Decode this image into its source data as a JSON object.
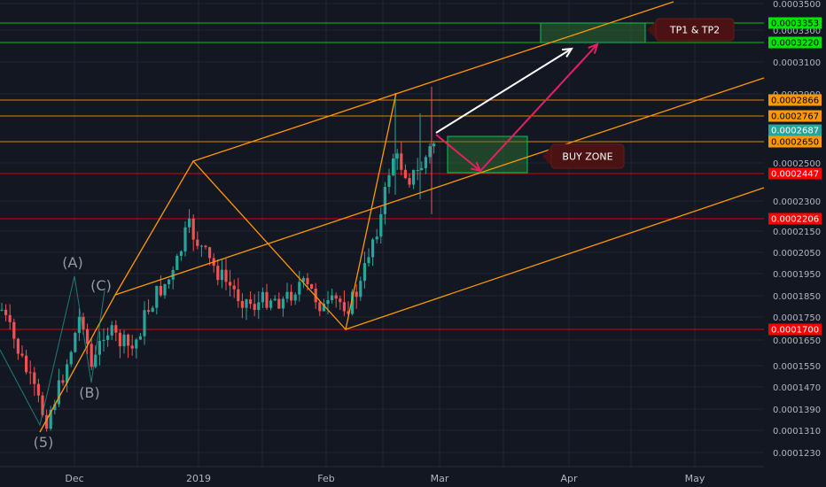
{
  "chart_data": {
    "type": "candlestick",
    "y_axis_ticks": [
      "0.0003500",
      "0.0003300",
      "0.0003100",
      "0.0002900",
      "0.0002500",
      "0.0002300",
      "0.0002150",
      "0.0002050",
      "0.0001950",
      "0.0001850",
      "0.0001750",
      "0.0001650",
      "0.0001550",
      "0.0001470",
      "0.0001390",
      "0.0001310",
      "0.0001230"
    ],
    "x_axis_ticks": [
      "Dec",
      "2019",
      "Feb",
      "Mar",
      "Apr",
      "May"
    ],
    "price_level_badges": [
      {
        "label": "0.0003353",
        "color": "#00e600",
        "text_color": "#000000"
      },
      {
        "label": "0.0003220",
        "color": "#00e600",
        "text_color": "#000000"
      },
      {
        "label": "0.0002866",
        "color": "#ff9800",
        "text_color": "#000000"
      },
      {
        "label": "0.0002767",
        "color": "#ff9800",
        "text_color": "#000000"
      },
      {
        "label": "0.0002687",
        "color": "#26a69a",
        "text_color": "#ffffff"
      },
      {
        "label": "0.0002650",
        "color": "#ff9800",
        "text_color": "#000000"
      },
      {
        "label": "0.0002447",
        "color": "#ff0000",
        "text_color": "#ffffff"
      },
      {
        "label": "0.0002206",
        "color": "#ff0000",
        "text_color": "#ffffff"
      },
      {
        "label": "0.0001700",
        "color": "#ff0000",
        "text_color": "#ffffff"
      }
    ],
    "wave_labels": [
      "(A)",
      "(C)",
      "(B)",
      "(5)"
    ],
    "annotations": {
      "targets": "TP1 & TP2",
      "buy_zone": "BUY ZONE"
    },
    "colors": {
      "up": "#26a69a",
      "down": "#ef5350",
      "channel": "#ff9800",
      "support": "#ff0000",
      "target": "#00e600"
    }
  }
}
